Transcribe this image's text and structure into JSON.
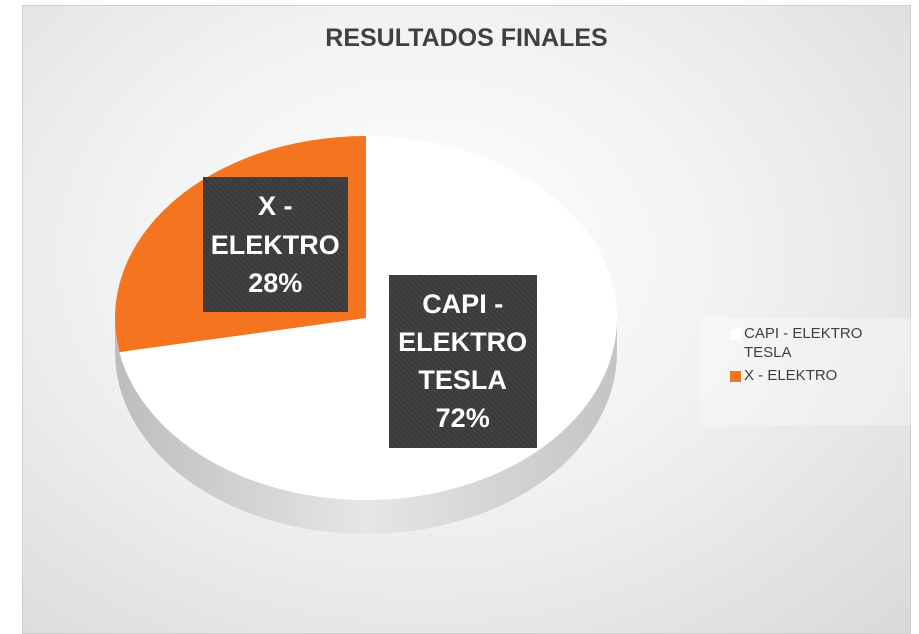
{
  "chart_data": {
    "type": "pie",
    "title": "RESULTADOS FINALES",
    "categories": [
      "CAPI - ELEKTRO TESLA",
      "X - ELEKTRO"
    ],
    "values": [
      72,
      28
    ],
    "value_labels": [
      "72%",
      "28%"
    ],
    "colors": [
      "#ffffff",
      "#f4741f"
    ],
    "legend": "right"
  }
}
